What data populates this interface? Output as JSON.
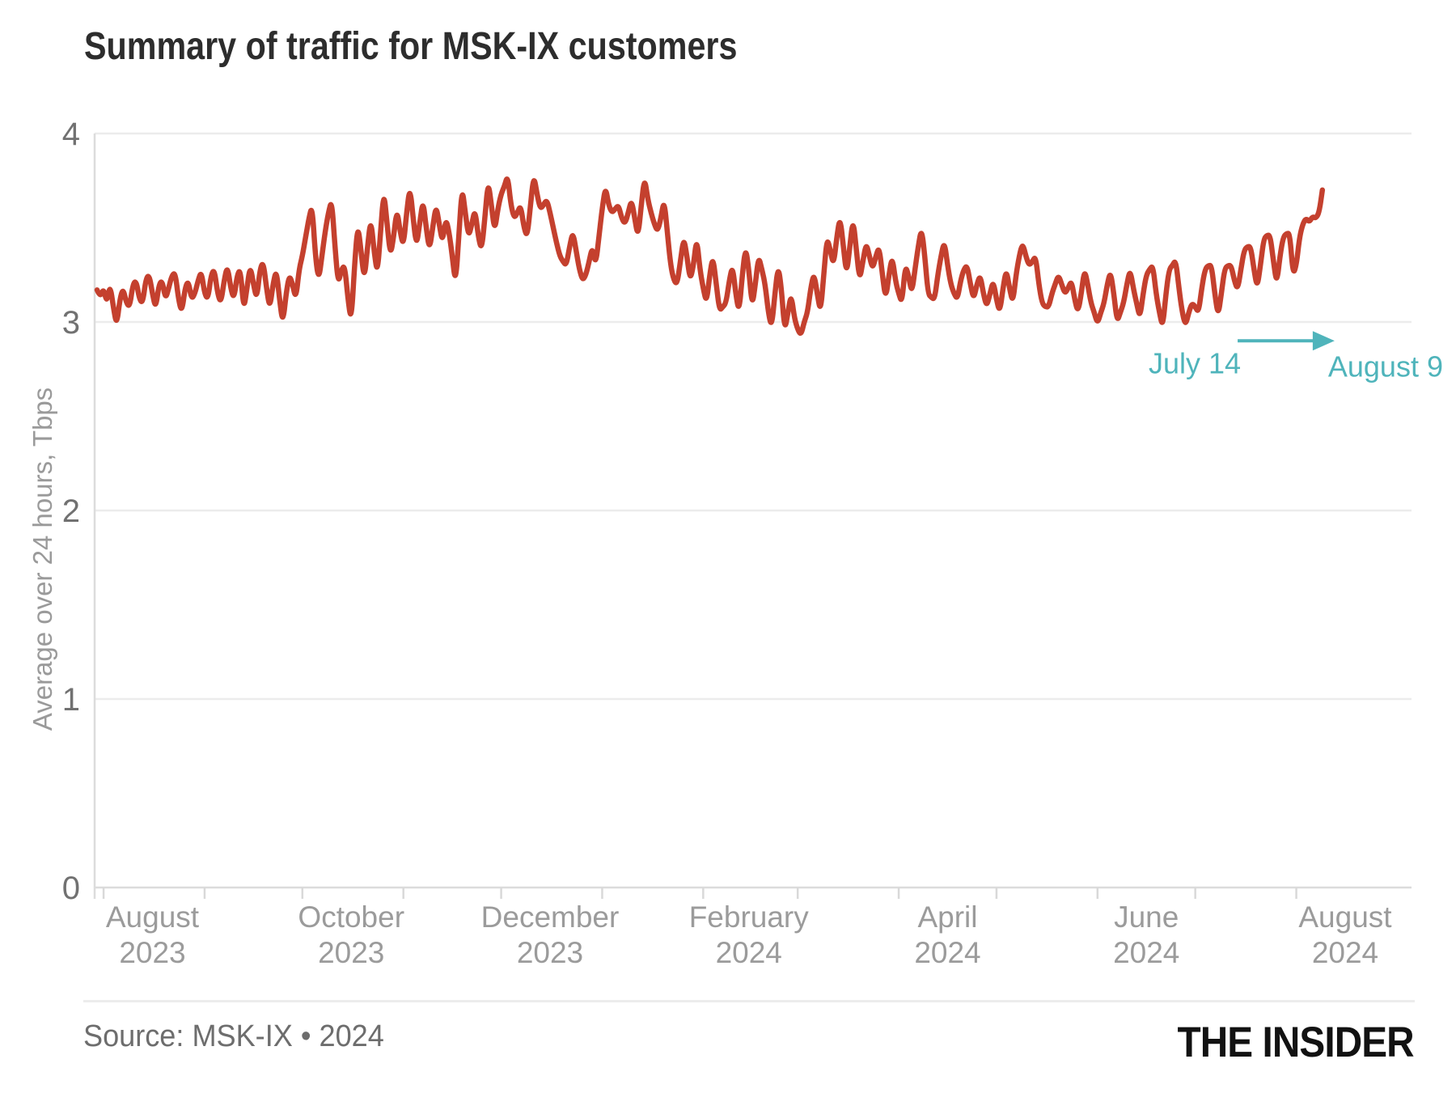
{
  "title": "Summary of traffic for MSK-IX customers",
  "source": {
    "text": "Source: MSK-IX • 2024"
  },
  "logo": {
    "text": "THE INSIDER"
  },
  "colors": {
    "line": "#c4402e",
    "annotation": "#4fb4bb",
    "gridline": "#ececec",
    "axis_line": "#dcdcdc",
    "tick": "#d9d9d9",
    "title_text": "#2d2d2d",
    "y_tick_text": "#717171",
    "x_label_text": "#9b9b9b",
    "source_text": "#6d6d6d",
    "logo_text": "#121212"
  },
  "y_axis": {
    "label": "Average over 24 hours, Tbps",
    "ticks": [
      0,
      1,
      2,
      3,
      4
    ]
  },
  "x_axis": {
    "tick_days": [
      2,
      33,
      63,
      94,
      124,
      155,
      186,
      215,
      246,
      276,
      307,
      337,
      368
    ],
    "labels": [
      {
        "month": "August",
        "year": "2023",
        "day": 17
      },
      {
        "month": "October",
        "year": "2023",
        "day": 78
      },
      {
        "month": "December",
        "year": "2023",
        "day": 139
      },
      {
        "month": "February",
        "year": "2024",
        "day": 200
      },
      {
        "month": "April",
        "year": "2024",
        "day": 261
      },
      {
        "month": "June",
        "year": "2024",
        "day": 322
      },
      {
        "month": "August",
        "year": "2024",
        "day": 383
      }
    ]
  },
  "annotation": {
    "from_label": "July 14",
    "to_label": "August 9",
    "from_day": 350,
    "to_day": 379,
    "value": 2.9
  },
  "chart_data": {
    "type": "line",
    "title": "Summary of traffic for MSK-IX customers",
    "xlabel": "",
    "ylabel": "Average over 24 hours, Tbps",
    "ylim": [
      0,
      4
    ],
    "grid": "horizontal",
    "legend": "none",
    "x_start": "2023-07-30",
    "x_end": "2024-08-09",
    "cadence": "daily",
    "series_name": "MSK-IX customer traffic, Tbps",
    "values": [
      3.17,
      3.13,
      3.18,
      3.1,
      3.2,
      3.08,
      2.98,
      3.12,
      3.18,
      3.1,
      3.08,
      3.2,
      3.22,
      3.12,
      3.1,
      3.23,
      3.25,
      3.15,
      3.07,
      3.2,
      3.22,
      3.12,
      3.18,
      3.25,
      3.26,
      3.12,
      3.05,
      3.18,
      3.22,
      3.12,
      3.15,
      3.22,
      3.27,
      3.15,
      3.12,
      3.25,
      3.28,
      3.15,
      3.1,
      3.22,
      3.3,
      3.18,
      3.12,
      3.25,
      3.28,
      3.06,
      3.18,
      3.3,
      3.2,
      3.12,
      3.28,
      3.32,
      3.18,
      3.07,
      3.2,
      3.28,
      3.12,
      2.99,
      3.15,
      3.25,
      3.2,
      3.12,
      3.28,
      3.35,
      3.45,
      3.55,
      3.62,
      3.35,
      3.22,
      3.35,
      3.48,
      3.58,
      3.65,
      3.4,
      3.2,
      3.28,
      3.3,
      3.12,
      3.0,
      3.3,
      3.52,
      3.38,
      3.22,
      3.4,
      3.55,
      3.38,
      3.25,
      3.48,
      3.7,
      3.52,
      3.35,
      3.45,
      3.6,
      3.48,
      3.4,
      3.58,
      3.72,
      3.55,
      3.4,
      3.52,
      3.65,
      3.5,
      3.38,
      3.5,
      3.62,
      3.52,
      3.42,
      3.55,
      3.48,
      3.35,
      3.2,
      3.45,
      3.72,
      3.58,
      3.45,
      3.52,
      3.6,
      3.45,
      3.38,
      3.55,
      3.75,
      3.62,
      3.48,
      3.6,
      3.68,
      3.72,
      3.78,
      3.62,
      3.55,
      3.58,
      3.62,
      3.5,
      3.45,
      3.62,
      3.78,
      3.68,
      3.6,
      3.62,
      3.65,
      3.58,
      3.5,
      3.42,
      3.35,
      3.32,
      3.3,
      3.4,
      3.48,
      3.38,
      3.28,
      3.22,
      3.25,
      3.32,
      3.4,
      3.3,
      3.45,
      3.6,
      3.72,
      3.62,
      3.58,
      3.6,
      3.62,
      3.55,
      3.52,
      3.58,
      3.65,
      3.55,
      3.45,
      3.62,
      3.77,
      3.65,
      3.58,
      3.52,
      3.48,
      3.55,
      3.65,
      3.48,
      3.3,
      3.22,
      3.2,
      3.32,
      3.45,
      3.35,
      3.22,
      3.3,
      3.45,
      3.28,
      3.18,
      3.1,
      3.25,
      3.35,
      3.2,
      3.06,
      3.08,
      3.1,
      3.22,
      3.3,
      3.15,
      3.05,
      3.25,
      3.4,
      3.28,
      3.08,
      3.2,
      3.35,
      3.28,
      3.2,
      3.05,
      2.97,
      3.15,
      3.3,
      3.18,
      2.95,
      3.05,
      3.15,
      3.02,
      2.96,
      2.93,
      3.0,
      3.05,
      3.18,
      3.26,
      3.15,
      3.05,
      3.25,
      3.45,
      3.38,
      3.3,
      3.45,
      3.56,
      3.4,
      3.25,
      3.4,
      3.55,
      3.38,
      3.22,
      3.32,
      3.42,
      3.35,
      3.28,
      3.35,
      3.4,
      3.25,
      3.12,
      3.25,
      3.35,
      3.22,
      3.15,
      3.1,
      3.3,
      3.25,
      3.15,
      3.28,
      3.4,
      3.5,
      3.35,
      3.15,
      3.13,
      3.12,
      3.25,
      3.35,
      3.43,
      3.3,
      3.2,
      3.15,
      3.12,
      3.22,
      3.28,
      3.3,
      3.2,
      3.12,
      3.2,
      3.25,
      3.15,
      3.08,
      3.15,
      3.22,
      3.12,
      3.05,
      3.18,
      3.28,
      3.18,
      3.1,
      3.25,
      3.35,
      3.42,
      3.35,
      3.3,
      3.32,
      3.35,
      3.2,
      3.1,
      3.08,
      3.08,
      3.15,
      3.2,
      3.25,
      3.2,
      3.15,
      3.18,
      3.22,
      3.12,
      3.05,
      3.15,
      3.28,
      3.2,
      3.1,
      3.05,
      2.99,
      3.05,
      3.1,
      3.2,
      3.27,
      3.15,
      3.0,
      3.05,
      3.1,
      3.2,
      3.28,
      3.18,
      3.1,
      3.02,
      3.15,
      3.25,
      3.28,
      3.3,
      3.15,
      3.05,
      2.97,
      3.15,
      3.28,
      3.3,
      3.33,
      3.18,
      3.05,
      2.98,
      3.05,
      3.1,
      3.08,
      3.05,
      3.18,
      3.28,
      3.3,
      3.3,
      3.15,
      3.03,
      3.15,
      3.28,
      3.3,
      3.3,
      3.22,
      3.17,
      3.28,
      3.38,
      3.4,
      3.4,
      3.28,
      3.18,
      3.3,
      3.44,
      3.46,
      3.46,
      3.32,
      3.2,
      3.35,
      3.45,
      3.47,
      3.47,
      3.25,
      3.3,
      3.45,
      3.52,
      3.55,
      3.53,
      3.56,
      3.55,
      3.58,
      3.7
    ]
  }
}
